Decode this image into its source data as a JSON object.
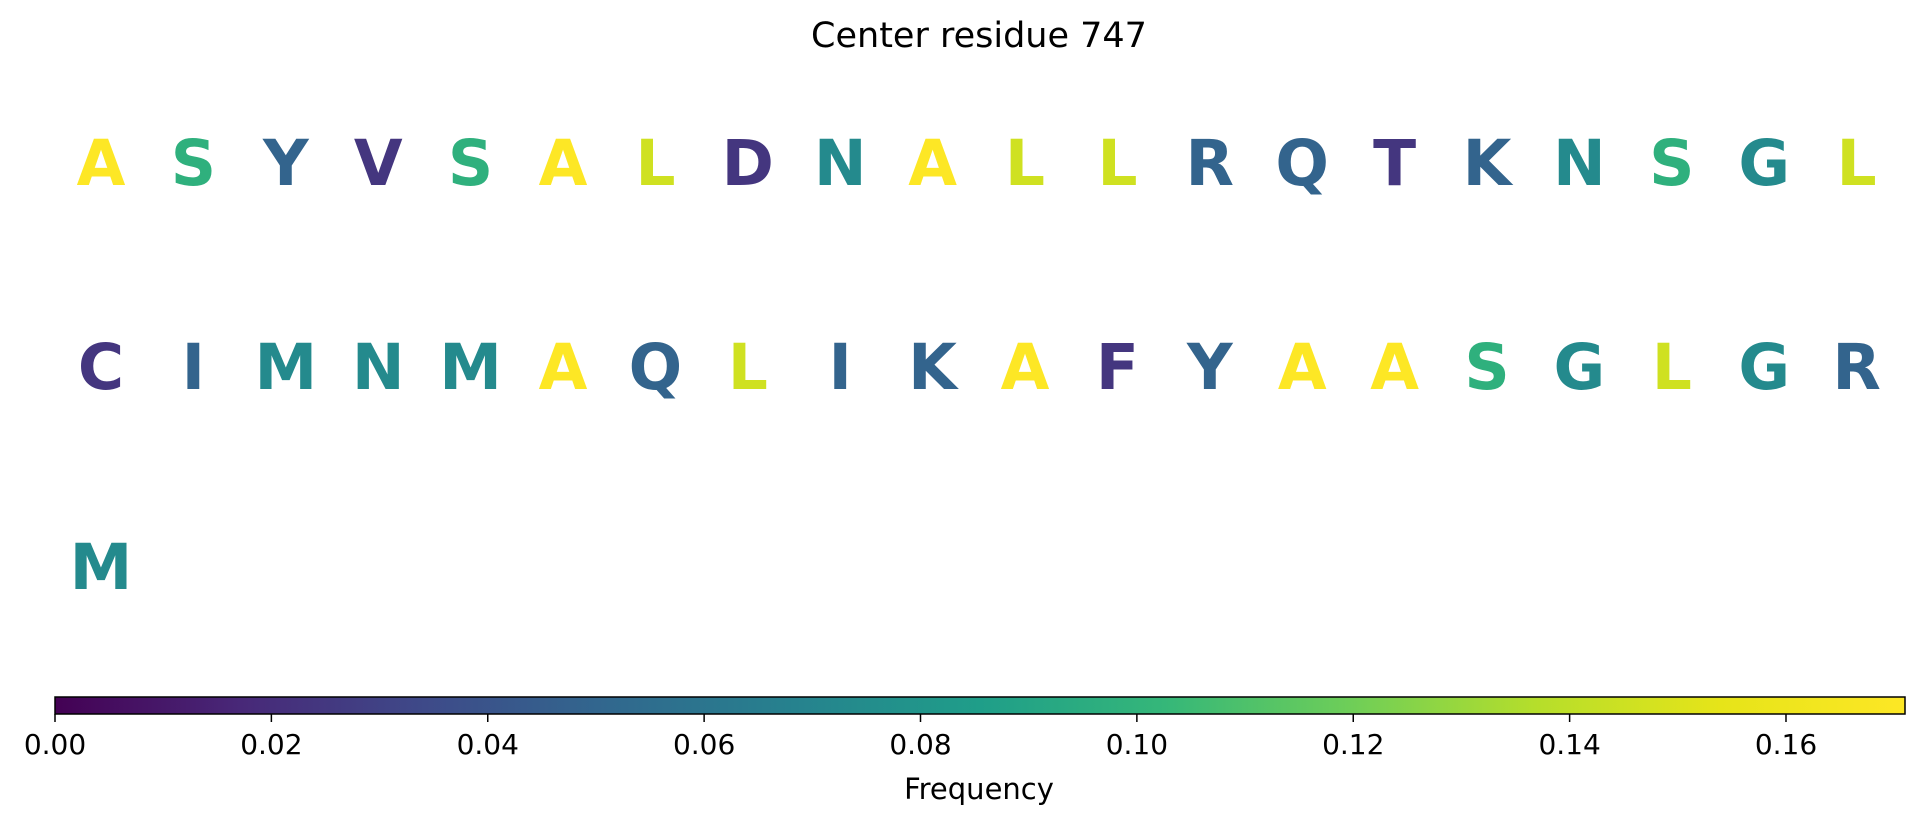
{
  "chart_data": {
    "type": "heatmap",
    "title": "Center residue 747",
    "colormap": "viridis",
    "colorbar": {
      "label": "Frequency",
      "min": 0.0,
      "max": 0.171,
      "ticks": [
        0.0,
        0.02,
        0.04,
        0.06,
        0.08,
        0.1,
        0.12,
        0.14,
        0.16
      ],
      "tick_labels": [
        "0.00",
        "0.02",
        "0.04",
        "0.06",
        "0.08",
        "0.10",
        "0.12",
        "0.14",
        "0.16"
      ],
      "orientation": "horizontal",
      "placement": "bottom"
    },
    "letters": [
      {
        "residue": "A",
        "frequency": 0.171
      },
      {
        "residue": "S",
        "frequency": 0.098
      },
      {
        "residue": "Y",
        "frequency": 0.049
      },
      {
        "residue": "V",
        "frequency": 0.024
      },
      {
        "residue": "S",
        "frequency": 0.098
      },
      {
        "residue": "A",
        "frequency": 0.171
      },
      {
        "residue": "L",
        "frequency": 0.146
      },
      {
        "residue": "D",
        "frequency": 0.024
      },
      {
        "residue": "N",
        "frequency": 0.073
      },
      {
        "residue": "A",
        "frequency": 0.171
      },
      {
        "residue": "L",
        "frequency": 0.146
      },
      {
        "residue": "L",
        "frequency": 0.146
      },
      {
        "residue": "R",
        "frequency": 0.049
      },
      {
        "residue": "Q",
        "frequency": 0.049
      },
      {
        "residue": "T",
        "frequency": 0.024
      },
      {
        "residue": "K",
        "frequency": 0.049
      },
      {
        "residue": "N",
        "frequency": 0.073
      },
      {
        "residue": "S",
        "frequency": 0.098
      },
      {
        "residue": "G",
        "frequency": 0.073
      },
      {
        "residue": "L",
        "frequency": 0.146
      },
      {
        "residue": "C",
        "frequency": 0.024
      },
      {
        "residue": "I",
        "frequency": 0.049
      },
      {
        "residue": "M",
        "frequency": 0.073
      },
      {
        "residue": "N",
        "frequency": 0.073
      },
      {
        "residue": "M",
        "frequency": 0.073
      },
      {
        "residue": "A",
        "frequency": 0.171
      },
      {
        "residue": "Q",
        "frequency": 0.049
      },
      {
        "residue": "L",
        "frequency": 0.146
      },
      {
        "residue": "I",
        "frequency": 0.049
      },
      {
        "residue": "K",
        "frequency": 0.049
      },
      {
        "residue": "A",
        "frequency": 0.171
      },
      {
        "residue": "F",
        "frequency": 0.024
      },
      {
        "residue": "Y",
        "frequency": 0.049
      },
      {
        "residue": "A",
        "frequency": 0.171
      },
      {
        "residue": "A",
        "frequency": 0.171
      },
      {
        "residue": "S",
        "frequency": 0.098
      },
      {
        "residue": "G",
        "frequency": 0.073
      },
      {
        "residue": "L",
        "frequency": 0.146
      },
      {
        "residue": "G",
        "frequency": 0.073
      },
      {
        "residue": "R",
        "frequency": 0.049
      },
      {
        "residue": "M",
        "frequency": 0.073
      }
    ]
  }
}
